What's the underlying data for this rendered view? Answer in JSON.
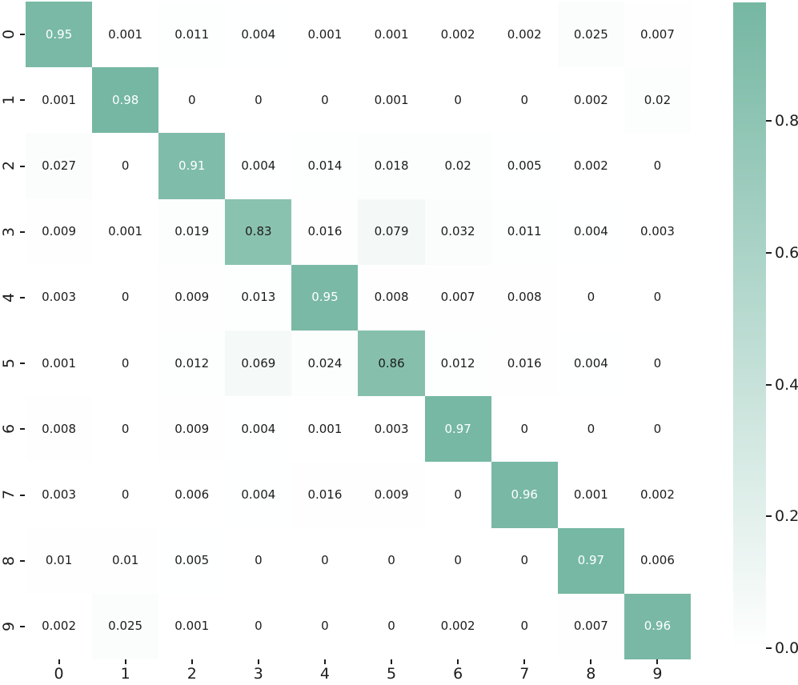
{
  "chart_data": {
    "type": "heatmap",
    "title": "",
    "xlabel": "",
    "ylabel": "",
    "x_tick_labels": [
      "0",
      "1",
      "2",
      "3",
      "4",
      "5",
      "6",
      "7",
      "8",
      "9"
    ],
    "y_tick_labels": [
      "0",
      "1",
      "2",
      "3",
      "4",
      "5",
      "6",
      "7",
      "8",
      "9"
    ],
    "matrix": [
      [
        0.95,
        0.001,
        0.011,
        0.004,
        0.001,
        0.001,
        0.002,
        0.002,
        0.025,
        0.007
      ],
      [
        0.001,
        0.98,
        0,
        0,
        0,
        0.001,
        0,
        0,
        0.002,
        0.02
      ],
      [
        0.027,
        0,
        0.91,
        0.004,
        0.014,
        0.018,
        0.02,
        0.005,
        0.002,
        0
      ],
      [
        0.009,
        0.001,
        0.019,
        0.83,
        0.016,
        0.079,
        0.032,
        0.011,
        0.004,
        0.003
      ],
      [
        0.003,
        0,
        0.009,
        0.013,
        0.95,
        0.008,
        0.007,
        0.008,
        0,
        0
      ],
      [
        0.001,
        0,
        0.012,
        0.069,
        0.024,
        0.86,
        0.012,
        0.016,
        0.004,
        0
      ],
      [
        0.008,
        0,
        0.009,
        0.004,
        0.001,
        0.003,
        0.97,
        0,
        0,
        0
      ],
      [
        0.003,
        0,
        0.006,
        0.004,
        0.016,
        0.009,
        0,
        0.96,
        0.001,
        0.002
      ],
      [
        0.01,
        0.01,
        0.005,
        0,
        0,
        0,
        0,
        0,
        0.97,
        0.006
      ],
      [
        0.002,
        0.025,
        0.001,
        0,
        0,
        0,
        0.002,
        0,
        0.007,
        0.96
      ]
    ],
    "vmin": 0,
    "vmax": 0.98,
    "colormap": {
      "low": "#ffffff",
      "high": "#75b7a2"
    },
    "white_text_threshold": 0.9,
    "annotation_color_dark": "#1c1c1c",
    "annotation_color_light": "#ffffff",
    "grid": false,
    "legend_position": "none",
    "colorbar": {
      "position": "right",
      "tick_values": [
        0.8,
        0.6,
        0.4,
        0.2,
        0.0
      ],
      "tick_labels": [
        "0.8",
        "0.6",
        "0.4",
        "0.2",
        "0.0"
      ]
    }
  }
}
